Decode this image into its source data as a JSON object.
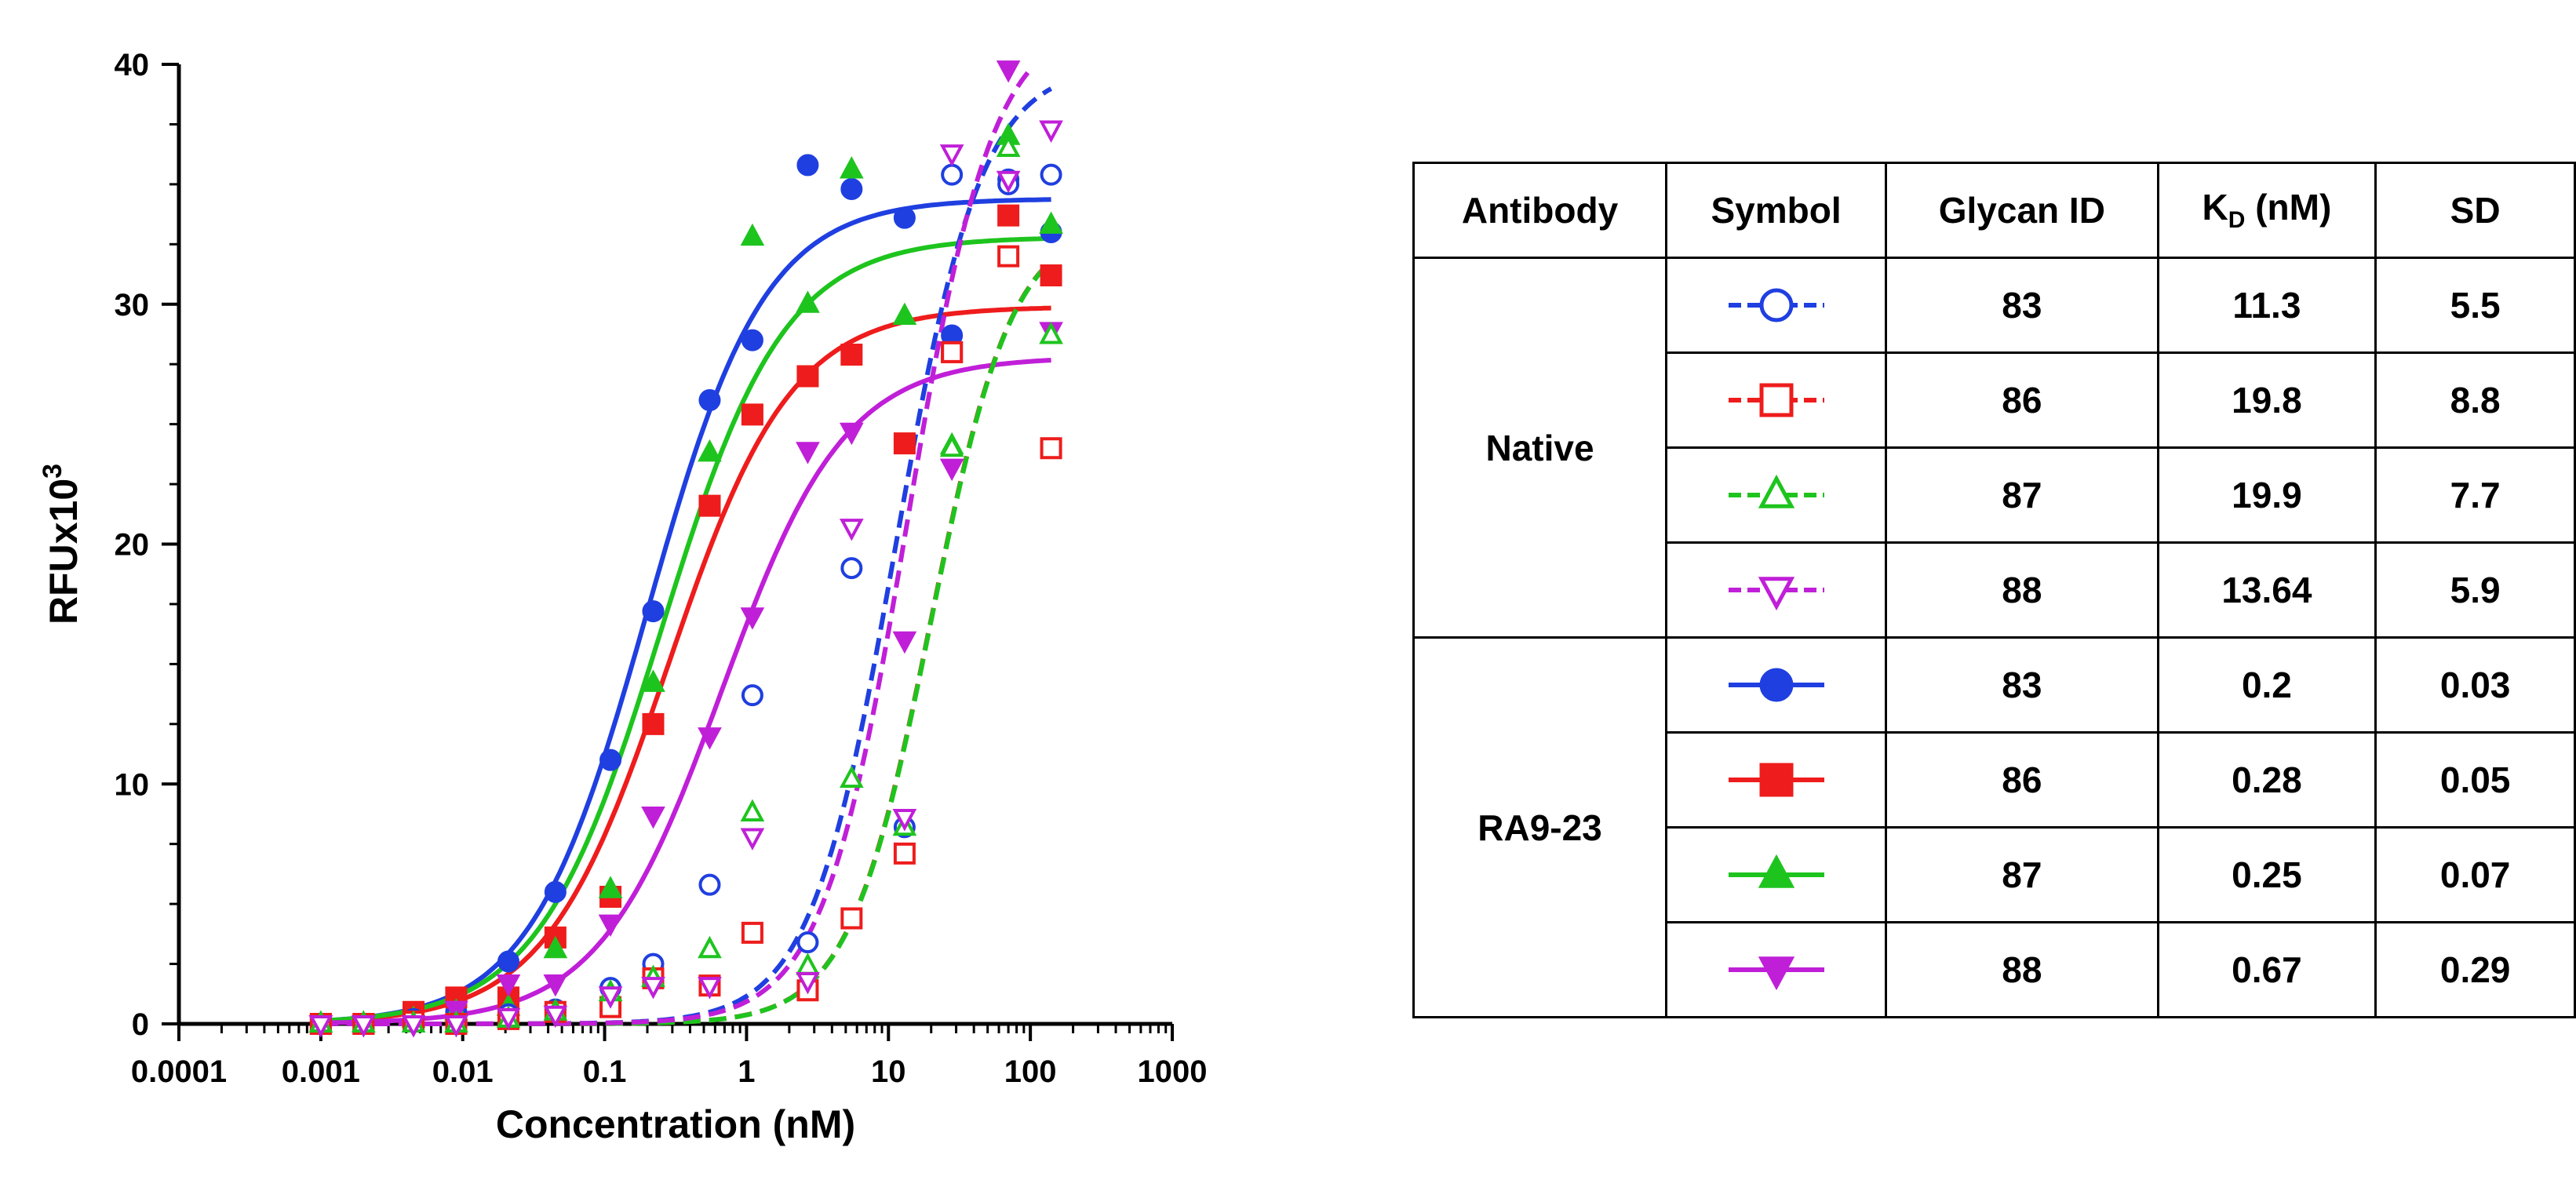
{
  "chart_data": {
    "type": "scatter",
    "xscale": "log",
    "xlim": [
      0.0001,
      1000
    ],
    "ylim": [
      0,
      40
    ],
    "xlabel": "Concentration (nM)",
    "ylabel": "RFUx10",
    "ylabel_sup": "3",
    "xticks": [
      "0.0001",
      "0.001",
      "0.01",
      "0.1",
      "1",
      "10",
      "100",
      "1000"
    ],
    "yticks": [
      "0",
      "10",
      "20",
      "30",
      "40"
    ],
    "x": [
      0.001,
      0.002,
      0.0045,
      0.009,
      0.021,
      0.045,
      0.11,
      0.22,
      0.55,
      1.1,
      2.7,
      5.5,
      13,
      28,
      70,
      140
    ],
    "series": [
      {
        "glycan": "83",
        "antibody": "RA9-23",
        "color": "#1f3fe0",
        "marker": "circle",
        "filled": true,
        "dashed": false,
        "fit": {
          "top": 34.4,
          "ec50": 0.2,
          "hill": 1.05
        },
        "values": [
          0,
          0,
          0.2,
          0.5,
          2.6,
          5.5,
          11,
          17.2,
          26,
          28.5,
          35.8,
          34.8,
          33.6,
          28.7,
          35.2,
          33
        ]
      },
      {
        "glycan": "86",
        "antibody": "RA9-23",
        "color": "#ee1c1c",
        "marker": "square",
        "filled": true,
        "dashed": false,
        "fit": {
          "top": 29.9,
          "ec50": 0.28,
          "hill": 1.0
        },
        "values": [
          0,
          0,
          0.5,
          1.1,
          1.1,
          3.6,
          5.3,
          12.5,
          21.6,
          25.4,
          27,
          27.9,
          24.2,
          28,
          33.7,
          31.2
        ]
      },
      {
        "glycan": "87",
        "antibody": "RA9-23",
        "color": "#1ec41e",
        "marker": "triangle-up",
        "filled": true,
        "dashed": false,
        "fit": {
          "top": 32.8,
          "ec50": 0.25,
          "hill": 1.0
        },
        "values": [
          0,
          0,
          0.2,
          0.5,
          0.7,
          3.1,
          5.6,
          14.2,
          23.8,
          32.8,
          30,
          35.6,
          29.5,
          24.1,
          37,
          33.3
        ]
      },
      {
        "glycan": "88",
        "antibody": "RA9-23",
        "color": "#c01fd8",
        "marker": "triangle-down",
        "filled": true,
        "dashed": false,
        "fit": {
          "top": 27.8,
          "ec50": 0.67,
          "hill": 1.0
        },
        "values": [
          0,
          0,
          0,
          0.6,
          1.7,
          1.7,
          4.2,
          8.7,
          12,
          17,
          23.9,
          24.7,
          16,
          23.2,
          39.8,
          28.9
        ]
      },
      {
        "glycan": "83",
        "antibody": "Native",
        "color": "#1f3fe0",
        "marker": "circle",
        "filled": false,
        "dashed": true,
        "fit": {
          "top": 40,
          "ec50": 11.3,
          "hill": 1.45
        },
        "values": [
          0,
          0,
          0.2,
          0,
          0.4,
          0.6,
          1.5,
          2.5,
          5.8,
          13.7,
          3.4,
          19,
          8.2,
          35.4,
          35,
          35.4
        ]
      },
      {
        "glycan": "86",
        "antibody": "Native",
        "color": "#ee1c1c",
        "marker": "square",
        "filled": false,
        "dashed": true,
        "fit": {
          "top": 33.5,
          "ec50": 19.8,
          "hill": 1.5
        },
        "values": [
          0,
          0,
          0.1,
          0,
          0.2,
          0.5,
          0.7,
          1.9,
          1.6,
          3.8,
          1.4,
          4.4,
          7.1,
          28,
          32,
          24
        ]
      },
      {
        "glycan": "87",
        "antibody": "Native",
        "color": "#1ec41e",
        "marker": "triangle-up",
        "filled": false,
        "dashed": true,
        "fit": {
          "top": 33.5,
          "ec50": 19.9,
          "hill": 1.5
        },
        "values": [
          0,
          0,
          0,
          0,
          0.2,
          0.5,
          1.3,
          1.9,
          3.1,
          8.8,
          2.4,
          10.2,
          8.2,
          24,
          36.5,
          28.7
        ]
      },
      {
        "glycan": "88",
        "antibody": "Native",
        "color": "#c01fd8",
        "marker": "triangle-down",
        "filled": false,
        "dashed": true,
        "fit": {
          "top": 42,
          "ec50": 13.64,
          "hill": 1.45
        },
        "values": [
          0,
          0,
          0,
          0,
          0.3,
          0.4,
          1.2,
          1.6,
          1.6,
          7.8,
          1.8,
          20.7,
          8.6,
          36.3,
          35.2,
          37.3
        ]
      }
    ]
  },
  "table": {
    "headers": {
      "antibody": "Antibody",
      "symbol": "Symbol",
      "glycan_id": "Glycan ID",
      "kd_main": "K",
      "kd_sub": "D",
      "kd_unit": " (nM)",
      "sd": "SD"
    },
    "groups": [
      {
        "antibody": "Native",
        "rows": [
          {
            "glycan_id": "83",
            "kd": "11.3",
            "sd": "5.5",
            "color": "#1f3fe0",
            "marker": "circle",
            "filled": false
          },
          {
            "glycan_id": "86",
            "kd": "19.8",
            "sd": "8.8",
            "color": "#ee1c1c",
            "marker": "square",
            "filled": false
          },
          {
            "glycan_id": "87",
            "kd": "19.9",
            "sd": "7.7",
            "color": "#1ec41e",
            "marker": "triangle-up",
            "filled": false
          },
          {
            "glycan_id": "88",
            "kd": "13.64",
            "sd": "5.9",
            "color": "#c01fd8",
            "marker": "triangle-down",
            "filled": false
          }
        ]
      },
      {
        "antibody": "RA9-23",
        "rows": [
          {
            "glycan_id": "83",
            "kd": "0.2",
            "sd": "0.03",
            "color": "#1f3fe0",
            "marker": "circle",
            "filled": true
          },
          {
            "glycan_id": "86",
            "kd": "0.28",
            "sd": "0.05",
            "color": "#ee1c1c",
            "marker": "square",
            "filled": true
          },
          {
            "glycan_id": "87",
            "kd": "0.25",
            "sd": "0.07",
            "color": "#1ec41e",
            "marker": "triangle-up",
            "filled": true
          },
          {
            "glycan_id": "88",
            "kd": "0.67",
            "sd": "0.29",
            "color": "#c01fd8",
            "marker": "triangle-down",
            "filled": true
          }
        ]
      }
    ]
  }
}
